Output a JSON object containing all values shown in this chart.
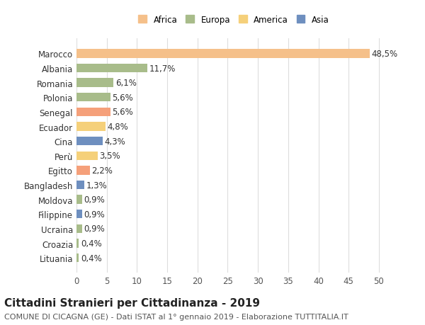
{
  "countries": [
    "Marocco",
    "Albania",
    "Romania",
    "Polonia",
    "Senegal",
    "Ecuador",
    "Cina",
    "Perù",
    "Egitto",
    "Bangladesh",
    "Moldova",
    "Filippine",
    "Ucraina",
    "Croazia",
    "Lituania"
  ],
  "values": [
    48.5,
    11.7,
    6.1,
    5.6,
    5.6,
    4.8,
    4.3,
    3.5,
    2.2,
    1.3,
    0.9,
    0.9,
    0.9,
    0.4,
    0.4
  ],
  "labels": [
    "48,5%",
    "11,7%",
    "6,1%",
    "5,6%",
    "5,6%",
    "4,8%",
    "4,3%",
    "3,5%",
    "2,2%",
    "1,3%",
    "0,9%",
    "0,9%",
    "0,9%",
    "0,4%",
    "0,4%"
  ],
  "colors": [
    "#F5C08A",
    "#A8BC8A",
    "#A8BC8A",
    "#A8BC8A",
    "#F5A07A",
    "#F5D07A",
    "#6E8FBF",
    "#F5D07A",
    "#F5A07A",
    "#6E8FBF",
    "#A8BC8A",
    "#6E8FBF",
    "#A8BC8A",
    "#A8BC8A",
    "#A8BC8A"
  ],
  "continents": [
    "Africa",
    "Europa",
    "Europa",
    "Europa",
    "Africa",
    "America",
    "Asia",
    "America",
    "Africa",
    "Asia",
    "Europa",
    "Asia",
    "Europa",
    "Europa",
    "Europa"
  ],
  "legend": [
    {
      "label": "Africa",
      "color": "#F5C08A"
    },
    {
      "label": "Europa",
      "color": "#A8BC8A"
    },
    {
      "label": "America",
      "color": "#F5D07A"
    },
    {
      "label": "Asia",
      "color": "#6E8FBF"
    }
  ],
  "xlim": [
    0,
    52
  ],
  "xticks": [
    0,
    5,
    10,
    15,
    20,
    25,
    30,
    35,
    40,
    45,
    50
  ],
  "title": "Cittadini Stranieri per Cittadinanza - 2019",
  "subtitle": "COMUNE DI CICAGNA (GE) - Dati ISTAT al 1° gennaio 2019 - Elaborazione TUTTITALIA.IT",
  "bg_color": "#ffffff",
  "grid_color": "#dddddd",
  "bar_height": 0.6,
  "label_fontsize": 8.5,
  "title_fontsize": 11,
  "subtitle_fontsize": 8
}
